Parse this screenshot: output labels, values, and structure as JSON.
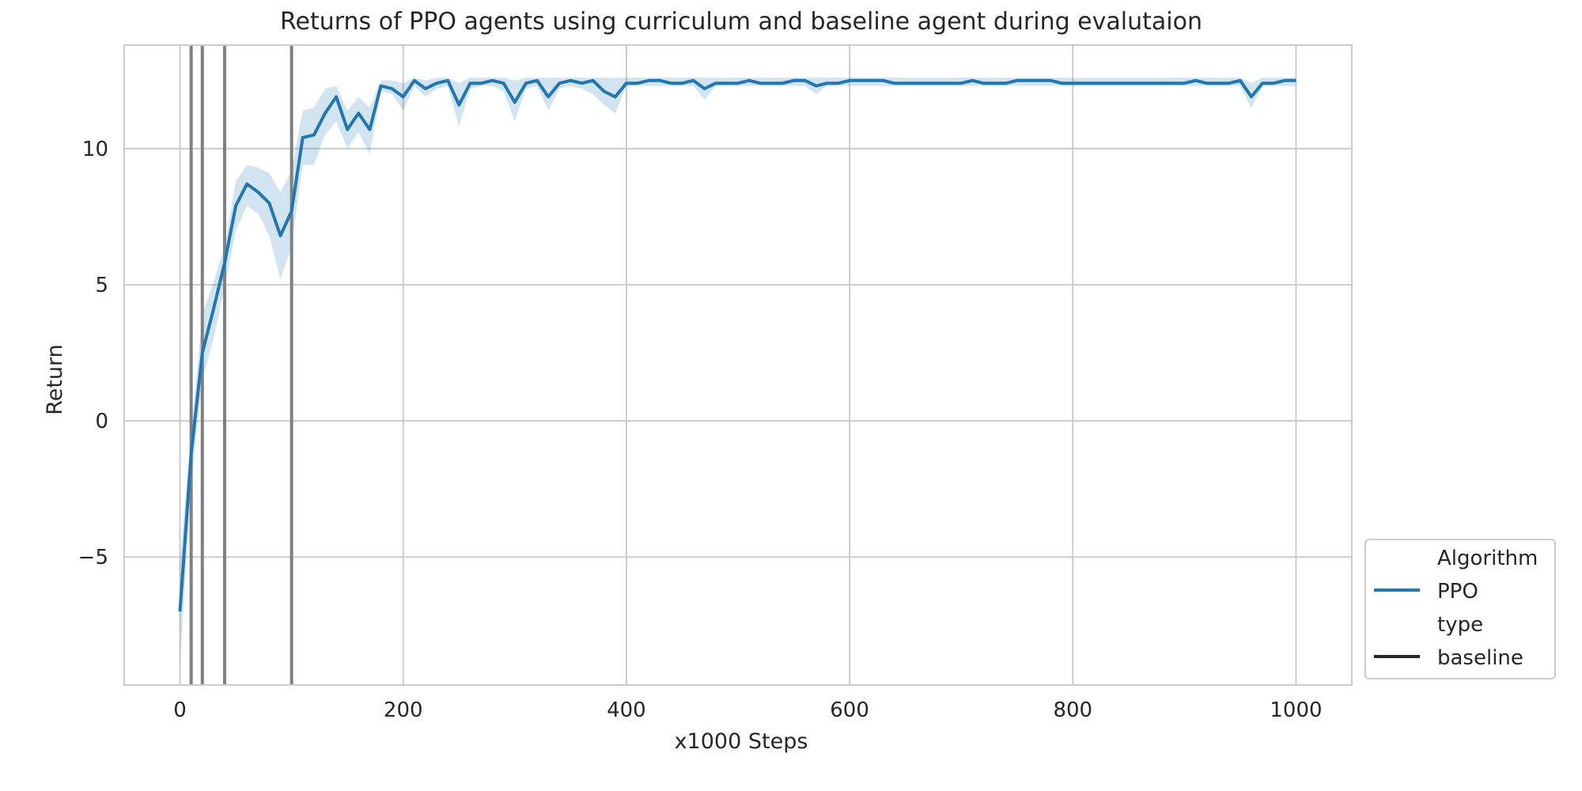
{
  "chart_data": {
    "type": "line",
    "title": "Returns of PPO agents using curriculum and baseline agent during evalutaion",
    "xlabel": "x1000 Steps",
    "ylabel": "Return",
    "xlim": [
      -50,
      1050
    ],
    "ylim": [
      -9.7,
      13.8
    ],
    "xticks": [
      0,
      200,
      400,
      600,
      800,
      1000
    ],
    "xtick_labels": [
      "0",
      "200",
      "400",
      "600",
      "800",
      "1000"
    ],
    "yticks": [
      -5,
      0,
      5,
      10
    ],
    "ytick_labels": [
      "−5",
      "0",
      "5",
      "10"
    ],
    "grid": true,
    "legend_position": "outside-right-bottom",
    "legend": {
      "hue_title": "Algorithm",
      "hue_entries": [
        {
          "label": "PPO",
          "color": "#1f77b4"
        }
      ],
      "style_title": "type",
      "style_entries": [
        {
          "label": "baseline",
          "color": "#262626"
        }
      ]
    },
    "series": [
      {
        "name": "PPO",
        "color": "#1f77b4",
        "x": [
          0,
          10,
          20,
          30,
          40,
          50,
          60,
          70,
          80,
          90,
          100,
          110,
          120,
          130,
          140,
          150,
          160,
          170,
          180,
          190,
          200,
          210,
          220,
          230,
          240,
          250,
          260,
          270,
          280,
          290,
          300,
          310,
          320,
          330,
          340,
          350,
          360,
          370,
          380,
          390,
          400,
          410,
          420,
          430,
          440,
          450,
          460,
          470,
          480,
          490,
          500,
          510,
          520,
          530,
          540,
          550,
          560,
          570,
          580,
          590,
          600,
          610,
          620,
          630,
          640,
          650,
          660,
          670,
          680,
          690,
          700,
          710,
          720,
          730,
          740,
          750,
          760,
          770,
          780,
          790,
          800,
          810,
          820,
          830,
          840,
          850,
          860,
          870,
          880,
          890,
          900,
          910,
          920,
          930,
          940,
          950,
          960,
          970,
          980,
          990,
          1000
        ],
        "y": [
          -7.0,
          -1.2,
          2.5,
          4.1,
          5.8,
          7.9,
          8.7,
          8.4,
          8.0,
          6.8,
          7.7,
          10.4,
          10.5,
          11.3,
          11.9,
          10.7,
          11.3,
          10.7,
          12.3,
          12.2,
          11.9,
          12.5,
          12.2,
          12.4,
          12.5,
          11.6,
          12.4,
          12.4,
          12.5,
          12.4,
          11.7,
          12.4,
          12.5,
          11.9,
          12.4,
          12.5,
          12.4,
          12.5,
          12.1,
          11.9,
          12.4,
          12.4,
          12.5,
          12.5,
          12.4,
          12.4,
          12.5,
          12.2,
          12.4,
          12.4,
          12.4,
          12.5,
          12.4,
          12.4,
          12.4,
          12.5,
          12.5,
          12.3,
          12.4,
          12.4,
          12.5,
          12.5,
          12.5,
          12.5,
          12.4,
          12.4,
          12.4,
          12.4,
          12.4,
          12.4,
          12.4,
          12.5,
          12.4,
          12.4,
          12.4,
          12.5,
          12.5,
          12.5,
          12.5,
          12.4,
          12.4,
          12.4,
          12.4,
          12.4,
          12.4,
          12.4,
          12.4,
          12.4,
          12.4,
          12.4,
          12.4,
          12.5,
          12.4,
          12.4,
          12.4,
          12.5,
          11.9,
          12.4,
          12.4,
          12.5,
          12.5
        ],
        "ci_lower": [
          -9.0,
          -2.3,
          1.5,
          3.0,
          4.9,
          7.0,
          7.9,
          7.6,
          6.8,
          5.2,
          6.4,
          9.4,
          9.4,
          10.5,
          11.0,
          10.0,
          10.6,
          9.8,
          12.1,
          12.0,
          11.4,
          12.3,
          11.9,
          12.2,
          12.3,
          10.8,
          12.2,
          12.3,
          12.3,
          12.1,
          11.0,
          12.2,
          12.3,
          11.4,
          12.2,
          12.3,
          12.2,
          12.0,
          11.6,
          11.3,
          12.3,
          12.3,
          12.3,
          12.3,
          12.3,
          12.3,
          12.3,
          11.8,
          12.3,
          12.3,
          12.3,
          12.3,
          12.3,
          12.3,
          12.3,
          12.3,
          12.3,
          12.0,
          12.3,
          12.3,
          12.3,
          12.3,
          12.3,
          12.3,
          12.3,
          12.3,
          12.3,
          12.3,
          12.3,
          12.3,
          12.3,
          12.3,
          12.3,
          12.3,
          12.3,
          12.3,
          12.3,
          12.3,
          12.3,
          12.3,
          12.3,
          12.3,
          12.3,
          12.3,
          12.3,
          12.3,
          12.3,
          12.3,
          12.3,
          12.3,
          12.3,
          12.3,
          12.3,
          12.3,
          12.3,
          12.3,
          11.5,
          12.3,
          12.3,
          12.3,
          12.3
        ],
        "ci_upper": [
          -5.2,
          -0.4,
          3.9,
          5.1,
          6.4,
          8.8,
          9.4,
          9.3,
          9.1,
          8.4,
          9.2,
          11.4,
          11.5,
          12.2,
          12.3,
          11.4,
          11.9,
          11.5,
          12.5,
          12.5,
          12.4,
          12.6,
          12.5,
          12.6,
          12.6,
          12.4,
          12.6,
          12.6,
          12.6,
          12.6,
          12.5,
          12.6,
          12.6,
          12.6,
          12.6,
          12.6,
          12.6,
          12.6,
          12.6,
          12.6,
          12.6,
          12.6,
          12.6,
          12.6,
          12.6,
          12.6,
          12.6,
          12.6,
          12.6,
          12.6,
          12.6,
          12.6,
          12.6,
          12.6,
          12.6,
          12.6,
          12.6,
          12.6,
          12.6,
          12.6,
          12.6,
          12.6,
          12.6,
          12.6,
          12.6,
          12.6,
          12.6,
          12.6,
          12.6,
          12.6,
          12.6,
          12.6,
          12.6,
          12.6,
          12.6,
          12.6,
          12.6,
          12.6,
          12.6,
          12.6,
          12.6,
          12.6,
          12.6,
          12.6,
          12.6,
          12.6,
          12.6,
          12.6,
          12.6,
          12.6,
          12.6,
          12.6,
          12.6,
          12.6,
          12.6,
          12.6,
          12.4,
          12.6,
          12.6,
          12.6,
          12.6
        ]
      }
    ],
    "baseline_vlines": {
      "name": "baseline",
      "color": "#808080",
      "x": [
        10,
        20,
        40,
        100
      ]
    }
  }
}
